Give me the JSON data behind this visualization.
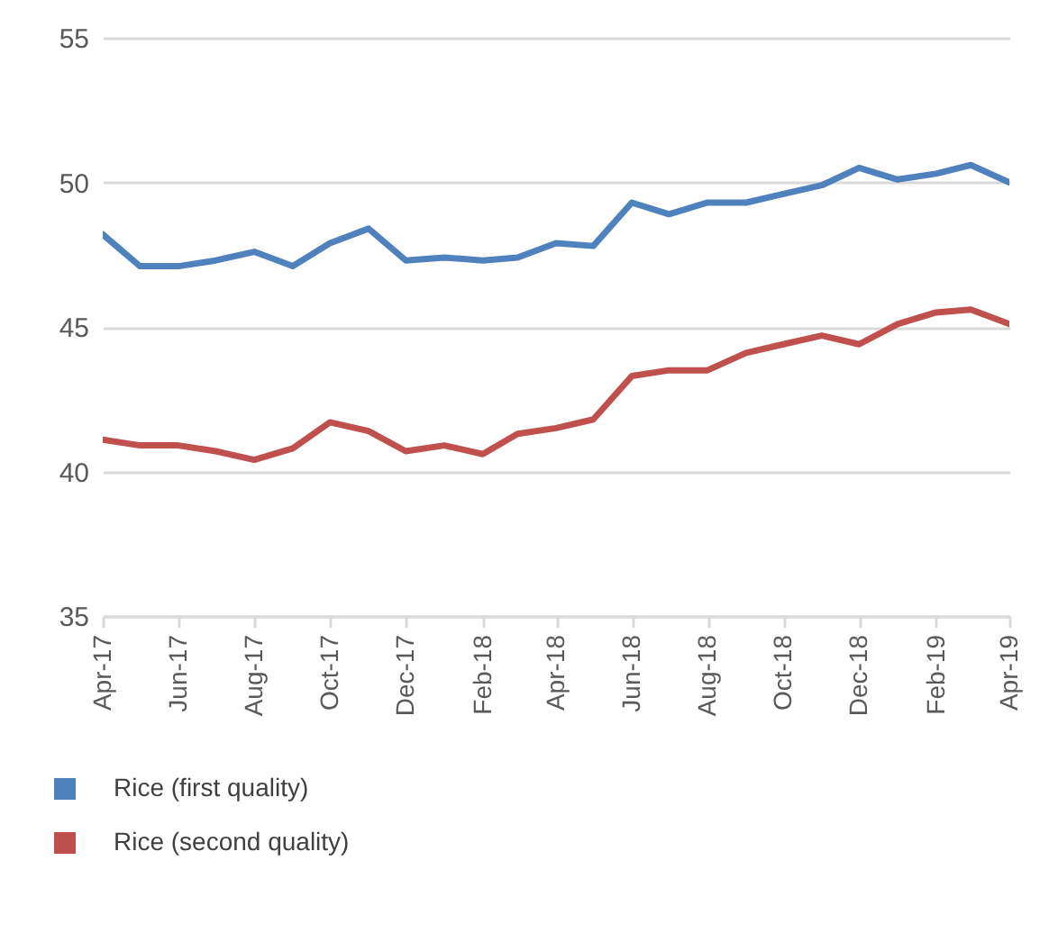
{
  "chart_data": {
    "type": "line",
    "x": [
      "2017-04",
      "2017-05",
      "2017-06",
      "2017-07",
      "2017-08",
      "2017-09",
      "2017-10",
      "2017-11",
      "2017-12",
      "2018-01",
      "2018-02",
      "2018-03",
      "2018-04",
      "2018-05",
      "2018-06",
      "2018-07",
      "2018-08",
      "2018-09",
      "2018-10",
      "2018-11",
      "2018-12",
      "2019-01",
      "2019-02",
      "2019-03",
      "2019-04"
    ],
    "xlim": [
      "2017-04",
      "2019-04"
    ],
    "xticks": [
      {
        "value": "2017-04",
        "label": "Apr-17"
      },
      {
        "value": "2017-06",
        "label": "Jun-17"
      },
      {
        "value": "2017-08",
        "label": "Aug-17"
      },
      {
        "value": "2017-10",
        "label": "Oct-17"
      },
      {
        "value": "2017-12",
        "label": "Dec-17"
      },
      {
        "value": "2018-02",
        "label": "Feb-18"
      },
      {
        "value": "2018-04",
        "label": "Apr-18"
      },
      {
        "value": "2018-06",
        "label": "Jun-18"
      },
      {
        "value": "2018-08",
        "label": "Aug-18"
      },
      {
        "value": "2018-10",
        "label": "Oct-18"
      },
      {
        "value": "2018-12",
        "label": "Dec-18"
      },
      {
        "value": "2019-02",
        "label": "Feb-19"
      },
      {
        "value": "2019-04",
        "label": "Apr-19"
      }
    ],
    "ylim": [
      35,
      55
    ],
    "yticks": [
      35,
      40,
      45,
      50,
      55
    ],
    "grid": "y",
    "legend": "bottom",
    "marker": "none",
    "line_style": "solid",
    "series": [
      {
        "name": "Rice (first quality)",
        "color": "#4f81bd",
        "values": [
          48.2,
          47.1,
          47.1,
          47.3,
          47.6,
          47.1,
          47.9,
          48.4,
          47.3,
          47.4,
          47.3,
          47.4,
          47.9,
          47.8,
          49.3,
          48.9,
          49.3,
          49.3,
          49.6,
          49.9,
          50.5,
          50.1,
          50.3,
          50.6,
          50.0
        ]
      },
      {
        "name": "Rice (second quality)",
        "color": "#c0504d",
        "values": [
          41.1,
          40.9,
          40.9,
          40.7,
          40.4,
          40.8,
          41.7,
          41.4,
          40.7,
          40.9,
          40.6,
          41.3,
          41.5,
          41.8,
          43.3,
          43.5,
          43.5,
          44.1,
          44.4,
          44.7,
          44.4,
          45.1,
          45.5,
          45.6,
          45.1
        ]
      }
    ]
  }
}
